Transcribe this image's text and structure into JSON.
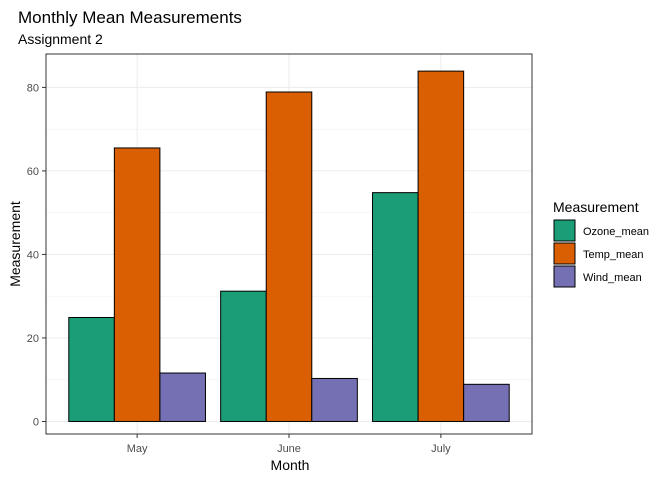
{
  "chart_data": {
    "type": "bar",
    "title": "Monthly Mean Measurements",
    "subtitle": "Assignment 2",
    "xlabel": "Month",
    "ylabel": "Measurement",
    "categories": [
      "May",
      "June",
      "July"
    ],
    "series": [
      {
        "name": "Ozone_mean",
        "color": "#1b9e77",
        "values": [
          24.9,
          31.2,
          54.8
        ]
      },
      {
        "name": "Temp_mean",
        "color": "#d95f02",
        "values": [
          65.5,
          78.9,
          83.9
        ]
      },
      {
        "name": "Wind_mean",
        "color": "#7570b3",
        "values": [
          11.6,
          10.3,
          8.9
        ]
      }
    ],
    "ylim": [
      -3,
      88
    ],
    "yticks": [
      0,
      20,
      40,
      60,
      80
    ],
    "legend_title": "Measurement",
    "legend_position": "right",
    "grid": true,
    "theme": "bw"
  }
}
